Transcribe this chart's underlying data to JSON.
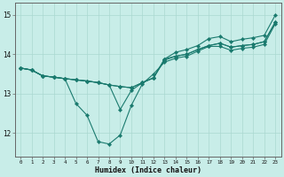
{
  "xlabel": "Humidex (Indice chaleur)",
  "bg_color": "#c8ede8",
  "line_color": "#1a7a6e",
  "grid_color": "#aad8d0",
  "axis_color": "#666666",
  "xlim": [
    -0.5,
    23.5
  ],
  "ylim": [
    11.4,
    15.3
  ],
  "yticks": [
    12,
    13,
    14,
    15
  ],
  "xticks": [
    0,
    1,
    2,
    3,
    4,
    5,
    6,
    7,
    8,
    9,
    10,
    11,
    12,
    13,
    14,
    15,
    16,
    17,
    18,
    19,
    20,
    21,
    22,
    23
  ],
  "line1_x": [
    0,
    1,
    2,
    3,
    4,
    5,
    6,
    7,
    8,
    9,
    10,
    11,
    12,
    13,
    14,
    15,
    16,
    17,
    18,
    19,
    20,
    21,
    22,
    23
  ],
  "line1_y": [
    13.65,
    13.6,
    13.45,
    13.42,
    13.38,
    12.75,
    12.45,
    11.78,
    11.72,
    11.95,
    12.7,
    13.25,
    13.5,
    13.8,
    13.9,
    13.95,
    14.08,
    14.2,
    14.2,
    14.1,
    14.15,
    14.18,
    14.25,
    14.78
  ],
  "line2_x": [
    0,
    1,
    2,
    3,
    4,
    5,
    6,
    7,
    8,
    9,
    10,
    11,
    12,
    13,
    14,
    15,
    16,
    17,
    18,
    19,
    20,
    21,
    22,
    23
  ],
  "line2_y": [
    13.65,
    13.6,
    13.45,
    13.42,
    13.38,
    13.35,
    13.32,
    13.28,
    13.22,
    12.6,
    13.08,
    13.28,
    13.4,
    13.85,
    13.95,
    14.0,
    14.12,
    14.22,
    14.28,
    14.18,
    14.22,
    14.25,
    14.32,
    14.82
  ],
  "line3_x": [
    0,
    1,
    2,
    3,
    4,
    5,
    6,
    7,
    8,
    9,
    10,
    11,
    12,
    13,
    14,
    15,
    16,
    17,
    18,
    19,
    20,
    21,
    22,
    23
  ],
  "line3_y": [
    13.65,
    13.6,
    13.45,
    13.42,
    13.38,
    13.35,
    13.32,
    13.28,
    13.22,
    13.18,
    13.15,
    13.28,
    13.4,
    13.88,
    13.95,
    14.0,
    14.12,
    14.22,
    14.28,
    14.18,
    14.22,
    14.25,
    14.32,
    14.82
  ],
  "line4_x": [
    0,
    1,
    2,
    3,
    4,
    5,
    6,
    7,
    8,
    9,
    10,
    11,
    12,
    13,
    14,
    15,
    16,
    17,
    18,
    19,
    20,
    21,
    22,
    23
  ],
  "line4_y": [
    13.65,
    13.6,
    13.45,
    13.42,
    13.38,
    13.35,
    13.32,
    13.28,
    13.22,
    13.18,
    13.15,
    13.28,
    13.4,
    13.88,
    14.05,
    14.12,
    14.22,
    14.4,
    14.45,
    14.32,
    14.38,
    14.42,
    14.48,
    15.0
  ]
}
